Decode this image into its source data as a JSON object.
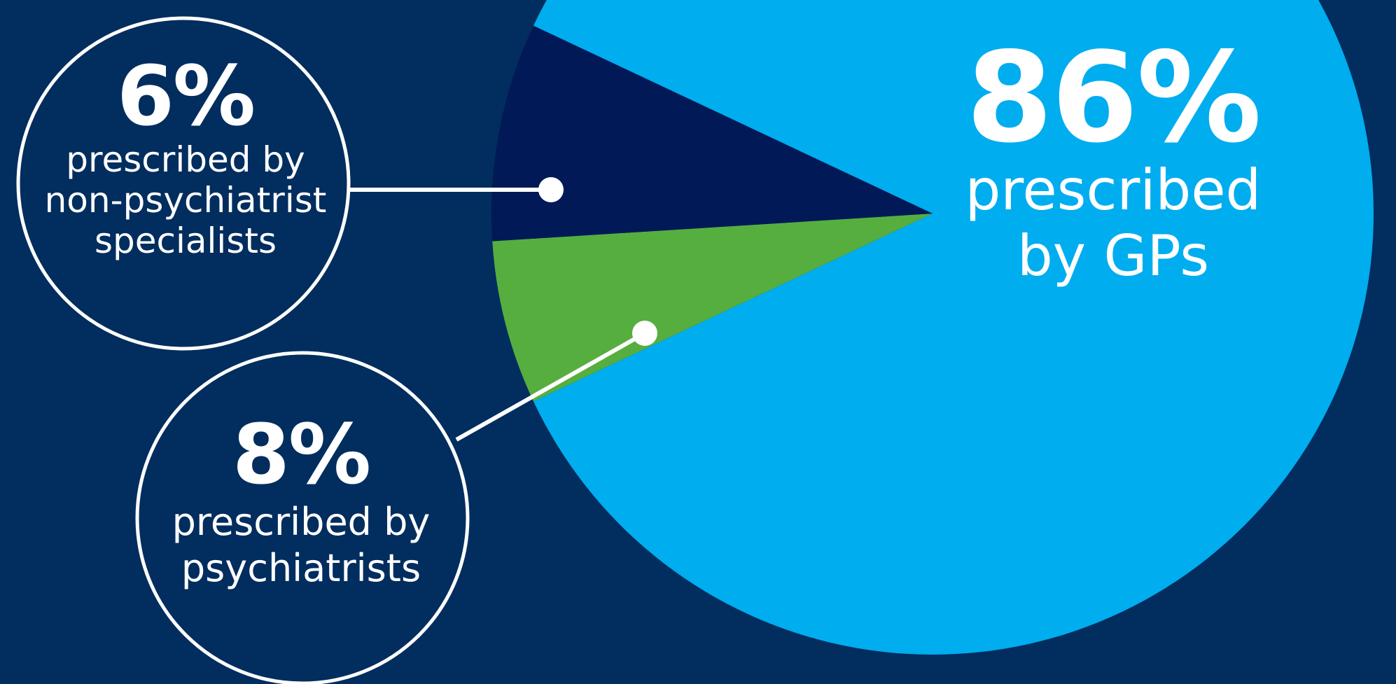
{
  "colors": {
    "background": "#022d5f",
    "gps": "#00adef",
    "non_psychiatrist_specialists": "#56ae3f",
    "psychiatrists": "#011956",
    "lines": "#ffffff"
  },
  "chart_data": {
    "type": "pie",
    "slices": [
      {
        "value": 86,
        "color": "#00adef",
        "pct_text": "86%",
        "text": "prescribed by GPs"
      },
      {
        "value": 6,
        "color": "#56ae3f",
        "pct_text": "6%",
        "text": "prescribed by non-psychiatrist specialists"
      },
      {
        "value": 8,
        "color": "#011956",
        "pct_text": "8%",
        "text": "prescribed by psychiatrists"
      }
    ]
  },
  "labels": {
    "gps": {
      "pct": "86%",
      "line1": "prescribed",
      "line2": "by GPs"
    },
    "specialists": {
      "pct": "6%",
      "line1": "prescribed by",
      "line2": "non-psychiatrist",
      "line3": "specialists"
    },
    "psychiatrists": {
      "pct": "8%",
      "line1": "prescribed by",
      "line2": "psychiatrists"
    }
  }
}
